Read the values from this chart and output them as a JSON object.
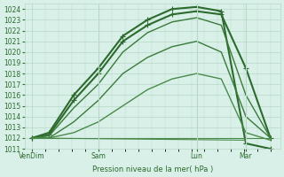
{
  "title": "",
  "xlabel": "Pression niveau de la mer( hPa )",
  "ylim": [
    1011,
    1024.5
  ],
  "xlim": [
    0,
    5.2
  ],
  "yticks": [
    1011,
    1012,
    1013,
    1014,
    1015,
    1016,
    1017,
    1018,
    1019,
    1020,
    1021,
    1022,
    1023,
    1024
  ],
  "xtick_positions": [
    0.15,
    1.5,
    3.5,
    4.5
  ],
  "xtick_labels": [
    "VenDim",
    "Sam",
    "Lun",
    "Mar"
  ],
  "bg_color": "#d8f0e8",
  "grid_color": "#b8d8c8",
  "line_color_dark": "#2d6a2d",
  "line_color_medium": "#3a7a3a",
  "line_color_light": "#4a8a4a",
  "lines": [
    {
      "x": [
        0.15,
        0.5,
        1.0,
        1.5,
        2.0,
        2.5,
        3.0,
        3.5,
        4.0,
        4.5,
        5.0
      ],
      "y": [
        1012.0,
        1012.5,
        1016.0,
        1018.5,
        1021.5,
        1023.0,
        1024.0,
        1024.2,
        1023.8,
        1011.5,
        1011.0
      ],
      "lw": 1.5,
      "marker": "+",
      "ms": 4,
      "color": "#2d6a2d"
    },
    {
      "x": [
        0.15,
        0.5,
        1.0,
        1.5,
        2.0,
        2.5,
        3.0,
        3.5,
        4.0,
        4.5,
        5.0
      ],
      "y": [
        1012.0,
        1012.3,
        1015.5,
        1018.0,
        1021.0,
        1022.5,
        1023.5,
        1023.8,
        1023.5,
        1018.5,
        1012.0
      ],
      "lw": 1.5,
      "marker": "+",
      "ms": 4,
      "color": "#2d6a2d"
    },
    {
      "x": [
        0.15,
        0.5,
        1.0,
        1.5,
        2.0,
        2.5,
        3.0,
        3.5,
        4.0,
        4.5,
        5.0
      ],
      "y": [
        1012.0,
        1012.2,
        1014.8,
        1017.0,
        1020.0,
        1021.8,
        1022.8,
        1023.2,
        1022.5,
        1016.0,
        1012.0
      ],
      "lw": 1.0,
      "marker": null,
      "ms": 0,
      "color": "#3a7a3a"
    },
    {
      "x": [
        0.15,
        0.5,
        1.0,
        1.5,
        2.0,
        2.5,
        3.0,
        3.5,
        4.0,
        4.5,
        5.0
      ],
      "y": [
        1012.0,
        1012.0,
        1013.5,
        1015.5,
        1018.0,
        1019.5,
        1020.5,
        1021.0,
        1020.0,
        1014.0,
        1012.0
      ],
      "lw": 1.0,
      "marker": null,
      "ms": 0,
      "color": "#3a7a3a"
    },
    {
      "x": [
        0.15,
        0.5,
        1.0,
        1.5,
        2.0,
        2.5,
        3.0,
        3.5,
        4.0,
        4.5,
        5.0
      ],
      "y": [
        1012.0,
        1012.0,
        1012.5,
        1013.5,
        1015.0,
        1016.5,
        1017.5,
        1018.0,
        1017.5,
        1012.5,
        1011.8
      ],
      "lw": 1.0,
      "marker": null,
      "ms": 0,
      "color": "#4a8a4a"
    },
    {
      "x": [
        0.15,
        5.0
      ],
      "y": [
        1012.0,
        1012.0
      ],
      "lw": 0.8,
      "marker": null,
      "ms": 0,
      "color": "#4a8a4a"
    },
    {
      "x": [
        0.15,
        4.5
      ],
      "y": [
        1012.0,
        1011.8
      ],
      "lw": 0.8,
      "marker": null,
      "ms": 0,
      "color": "#4a8a4a"
    }
  ]
}
